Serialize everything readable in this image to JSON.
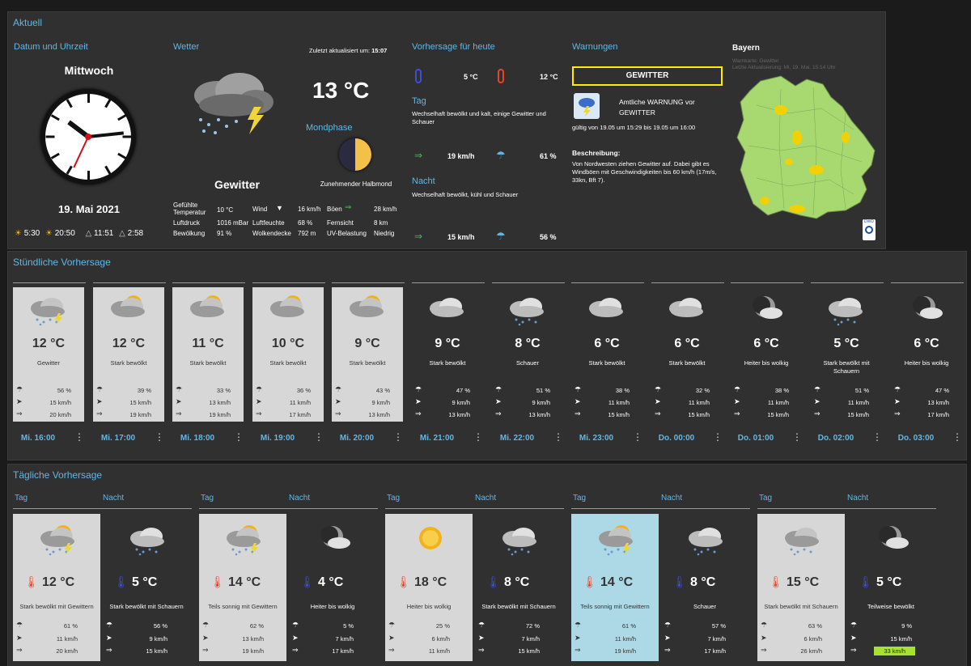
{
  "aktuell": {
    "title": "Aktuell",
    "datetime": {
      "label": "Datum und Uhrzeit",
      "weekday": "Mittwoch",
      "date": "19. Mai 2021",
      "sunrise": "5:30",
      "sunset": "20:50",
      "moonrise": "11:51",
      "moonset": "2:58",
      "clock_hour": 10,
      "clock_minute": 14
    },
    "weather": {
      "label": "Wetter",
      "updated_label": "Zuletzt aktualisiert um:",
      "updated_time": "15:07",
      "temp": "13 °C",
      "condition": "Gewitter",
      "moon_label": "Mondphase",
      "moon_phase": "Zunehmender Halbmond",
      "details": [
        {
          "label": "Gefühlte Temperatur",
          "value": "10 °C"
        },
        {
          "label": "Luftdruck",
          "value": "1016 mBar"
        },
        {
          "label": "Bewölkung",
          "value": "91 %"
        },
        {
          "label": "Wind",
          "value": "16 km/h"
        },
        {
          "label": "Luftfeuchte",
          "value": "68 %"
        },
        {
          "label": "Wolkendecke",
          "value": "792 m"
        },
        {
          "label": "Böen",
          "value": "28 km/h"
        },
        {
          "label": "Fernsicht",
          "value": "8 km"
        },
        {
          "label": "UV-Belastung",
          "value": "Niedrig"
        }
      ]
    },
    "forecast_today": {
      "label": "Vorhersage für heute",
      "min": "5 °C",
      "max": "12 °C",
      "day_label": "Tag",
      "day_text": "Wechselhaft bewölkt und kalt, einige Gewitter und Schauer",
      "day_wind": "19 km/h",
      "day_rain": "61 %",
      "night_label": "Nacht",
      "night_text": "Wechselhaft bewölkt, kühl und Schauer",
      "night_wind": "15 km/h",
      "night_rain": "56 %"
    },
    "warnings": {
      "label": "Warnungen",
      "badge": "GEWITTER",
      "headline": "Amtliche WARNUNG vor GEWITTER",
      "validity": "gültig von 19.05 um 15:29 bis 19.05 um 16:00",
      "desc_label": "Beschreibung:",
      "description": "Von Nordwesten ziehen Gewitter auf. Dabei gibt es Windböen mit Geschwindigkeiten bis 60 km/h (17m/s, 33kn, Bft 7)."
    },
    "map": {
      "title": "Bayern",
      "subtitle1": "Warnkarte: Gewitter",
      "subtitle2": "Letzte Aktualisierung: Mi, 19. Mai, 15:14 Uhr",
      "logo": "DWD"
    }
  },
  "hourly": {
    "title": "Stündliche Vorhersage",
    "items": [
      {
        "time": "Mi. 16:00",
        "temp": "12 °C",
        "desc": "Gewitter",
        "rain": "56 %",
        "wind": "15 km/h",
        "gust": "20 km/h",
        "type": "day",
        "icon": "thunder-cloud-icon"
      },
      {
        "time": "Mi. 17:00",
        "temp": "12 °C",
        "desc": "Stark bewölkt",
        "rain": "39 %",
        "wind": "15 km/h",
        "gust": "19 km/h",
        "type": "day",
        "icon": "sun-cloud-icon"
      },
      {
        "time": "Mi. 18:00",
        "temp": "11 °C",
        "desc": "Stark bewölkt",
        "rain": "33 %",
        "wind": "13 km/h",
        "gust": "19 km/h",
        "type": "day",
        "icon": "sun-cloud-icon"
      },
      {
        "time": "Mi. 19:00",
        "temp": "10 °C",
        "desc": "Stark bewölkt",
        "rain": "36 %",
        "wind": "11 km/h",
        "gust": "17 km/h",
        "type": "day",
        "icon": "sun-cloud-icon"
      },
      {
        "time": "Mi. 20:00",
        "temp": "9 °C",
        "desc": "Stark bewölkt",
        "rain": "43 %",
        "wind": "9 km/h",
        "gust": "13 km/h",
        "type": "day",
        "icon": "sun-cloud-icon"
      },
      {
        "time": "Mi. 21:00",
        "temp": "9 °C",
        "desc": "Stark bewölkt",
        "rain": "47 %",
        "wind": "9 km/h",
        "gust": "13 km/h",
        "type": "night",
        "icon": "cloud-icon"
      },
      {
        "time": "Mi. 22:00",
        "temp": "8 °C",
        "desc": "Schauer",
        "rain": "51 %",
        "wind": "9 km/h",
        "gust": "13 km/h",
        "type": "night",
        "icon": "rain-cloud-icon"
      },
      {
        "time": "Mi. 23:00",
        "temp": "6 °C",
        "desc": "Stark bewölkt",
        "rain": "38 %",
        "wind": "11 km/h",
        "gust": "15 km/h",
        "type": "night",
        "icon": "cloud-icon"
      },
      {
        "time": "Do. 00:00",
        "temp": "6 °C",
        "desc": "Stark bewölkt",
        "rain": "32 %",
        "wind": "11 km/h",
        "gust": "15 km/h",
        "type": "night",
        "icon": "cloud-icon"
      },
      {
        "time": "Do. 01:00",
        "temp": "6 °C",
        "desc": "Heiter bis wolkig",
        "rain": "38 %",
        "wind": "11 km/h",
        "gust": "15 km/h",
        "type": "night",
        "icon": "moon-cloud-icon"
      },
      {
        "time": "Do. 02:00",
        "temp": "5 °C",
        "desc": "Stark bewölkt mit Schauern",
        "rain": "51 %",
        "wind": "11 km/h",
        "gust": "15 km/h",
        "type": "night",
        "icon": "rain-cloud-icon"
      },
      {
        "time": "Do. 03:00",
        "temp": "6 °C",
        "desc": "Heiter bis wolkig",
        "rain": "47 %",
        "wind": "13 km/h",
        "gust": "17 km/h",
        "type": "night",
        "icon": "moon-cloud-icon"
      }
    ]
  },
  "daily": {
    "title": "Tägliche Vorhersage",
    "day_label": "Tag",
    "night_label": "Nacht",
    "items": [
      {
        "day": {
          "temp": "12 °C",
          "desc": "Stark bewölkt mit Gewittern",
          "rain": "61 %",
          "wind": "11 km/h",
          "gust": "20 km/h",
          "bg": "light",
          "icon": "sun-thunder-icon"
        },
        "night": {
          "temp": "5 °C",
          "desc": "Stark bewölkt mit Schauern",
          "rain": "56 %",
          "wind": "9 km/h",
          "gust": "15 km/h",
          "icon": "rain-cloud-icon"
        }
      },
      {
        "day": {
          "temp": "14 °C",
          "desc": "Teils sonnig mit Gewittern",
          "rain": "62 %",
          "wind": "13 km/h",
          "gust": "19 km/h",
          "bg": "light",
          "icon": "sun-thunder-icon"
        },
        "night": {
          "temp": "4 °C",
          "desc": "Heiter bis wolkig",
          "rain": "5 %",
          "wind": "7 km/h",
          "gust": "17 km/h",
          "icon": "moon-cloud-icon"
        }
      },
      {
        "day": {
          "temp": "18 °C",
          "desc": "Heiter bis wolkig",
          "rain": "25 %",
          "wind": "6 km/h",
          "gust": "11 km/h",
          "bg": "light",
          "icon": "sun-icon"
        },
        "night": {
          "temp": "8 °C",
          "desc": "Stark bewölkt mit Schauern",
          "rain": "72 %",
          "wind": "7 km/h",
          "gust": "15 km/h",
          "icon": "rain-cloud-icon"
        }
      },
      {
        "day": {
          "temp": "14 °C",
          "desc": "Teils sonnig mit Gewittern",
          "rain": "61 %",
          "wind": "11 km/h",
          "gust": "19 km/h",
          "bg": "blue",
          "icon": "sun-thunder-icon"
        },
        "night": {
          "temp": "8 °C",
          "desc": "Schauer",
          "rain": "57 %",
          "wind": "7 km/h",
          "gust": "17 km/h",
          "icon": "rain-cloud-icon"
        }
      },
      {
        "day": {
          "temp": "15 °C",
          "desc": "Stark bewölkt mit Schauern",
          "rain": "63 %",
          "wind": "6 km/h",
          "gust": "26 km/h",
          "bg": "light",
          "icon": "rain-cloud-icon"
        },
        "night": {
          "temp": "5 °C",
          "desc": "Teilweise bewölkt",
          "rain": "9 %",
          "wind": "15 km/h",
          "gust": "33 km/h",
          "gust_highlight": "#a6e22e",
          "icon": "moon-cloud-icon"
        }
      }
    ]
  },
  "colors": {
    "accent": "#5fb8e6",
    "panel": "#303030",
    "day_card": "#d7d7d7",
    "highlight_card": "#add8e6",
    "warning_border": "#ffee00",
    "cold": "#3c4fd8",
    "warm": "#e8442a",
    "map_green": "#a8d870",
    "map_yellow": "#f3d100"
  }
}
